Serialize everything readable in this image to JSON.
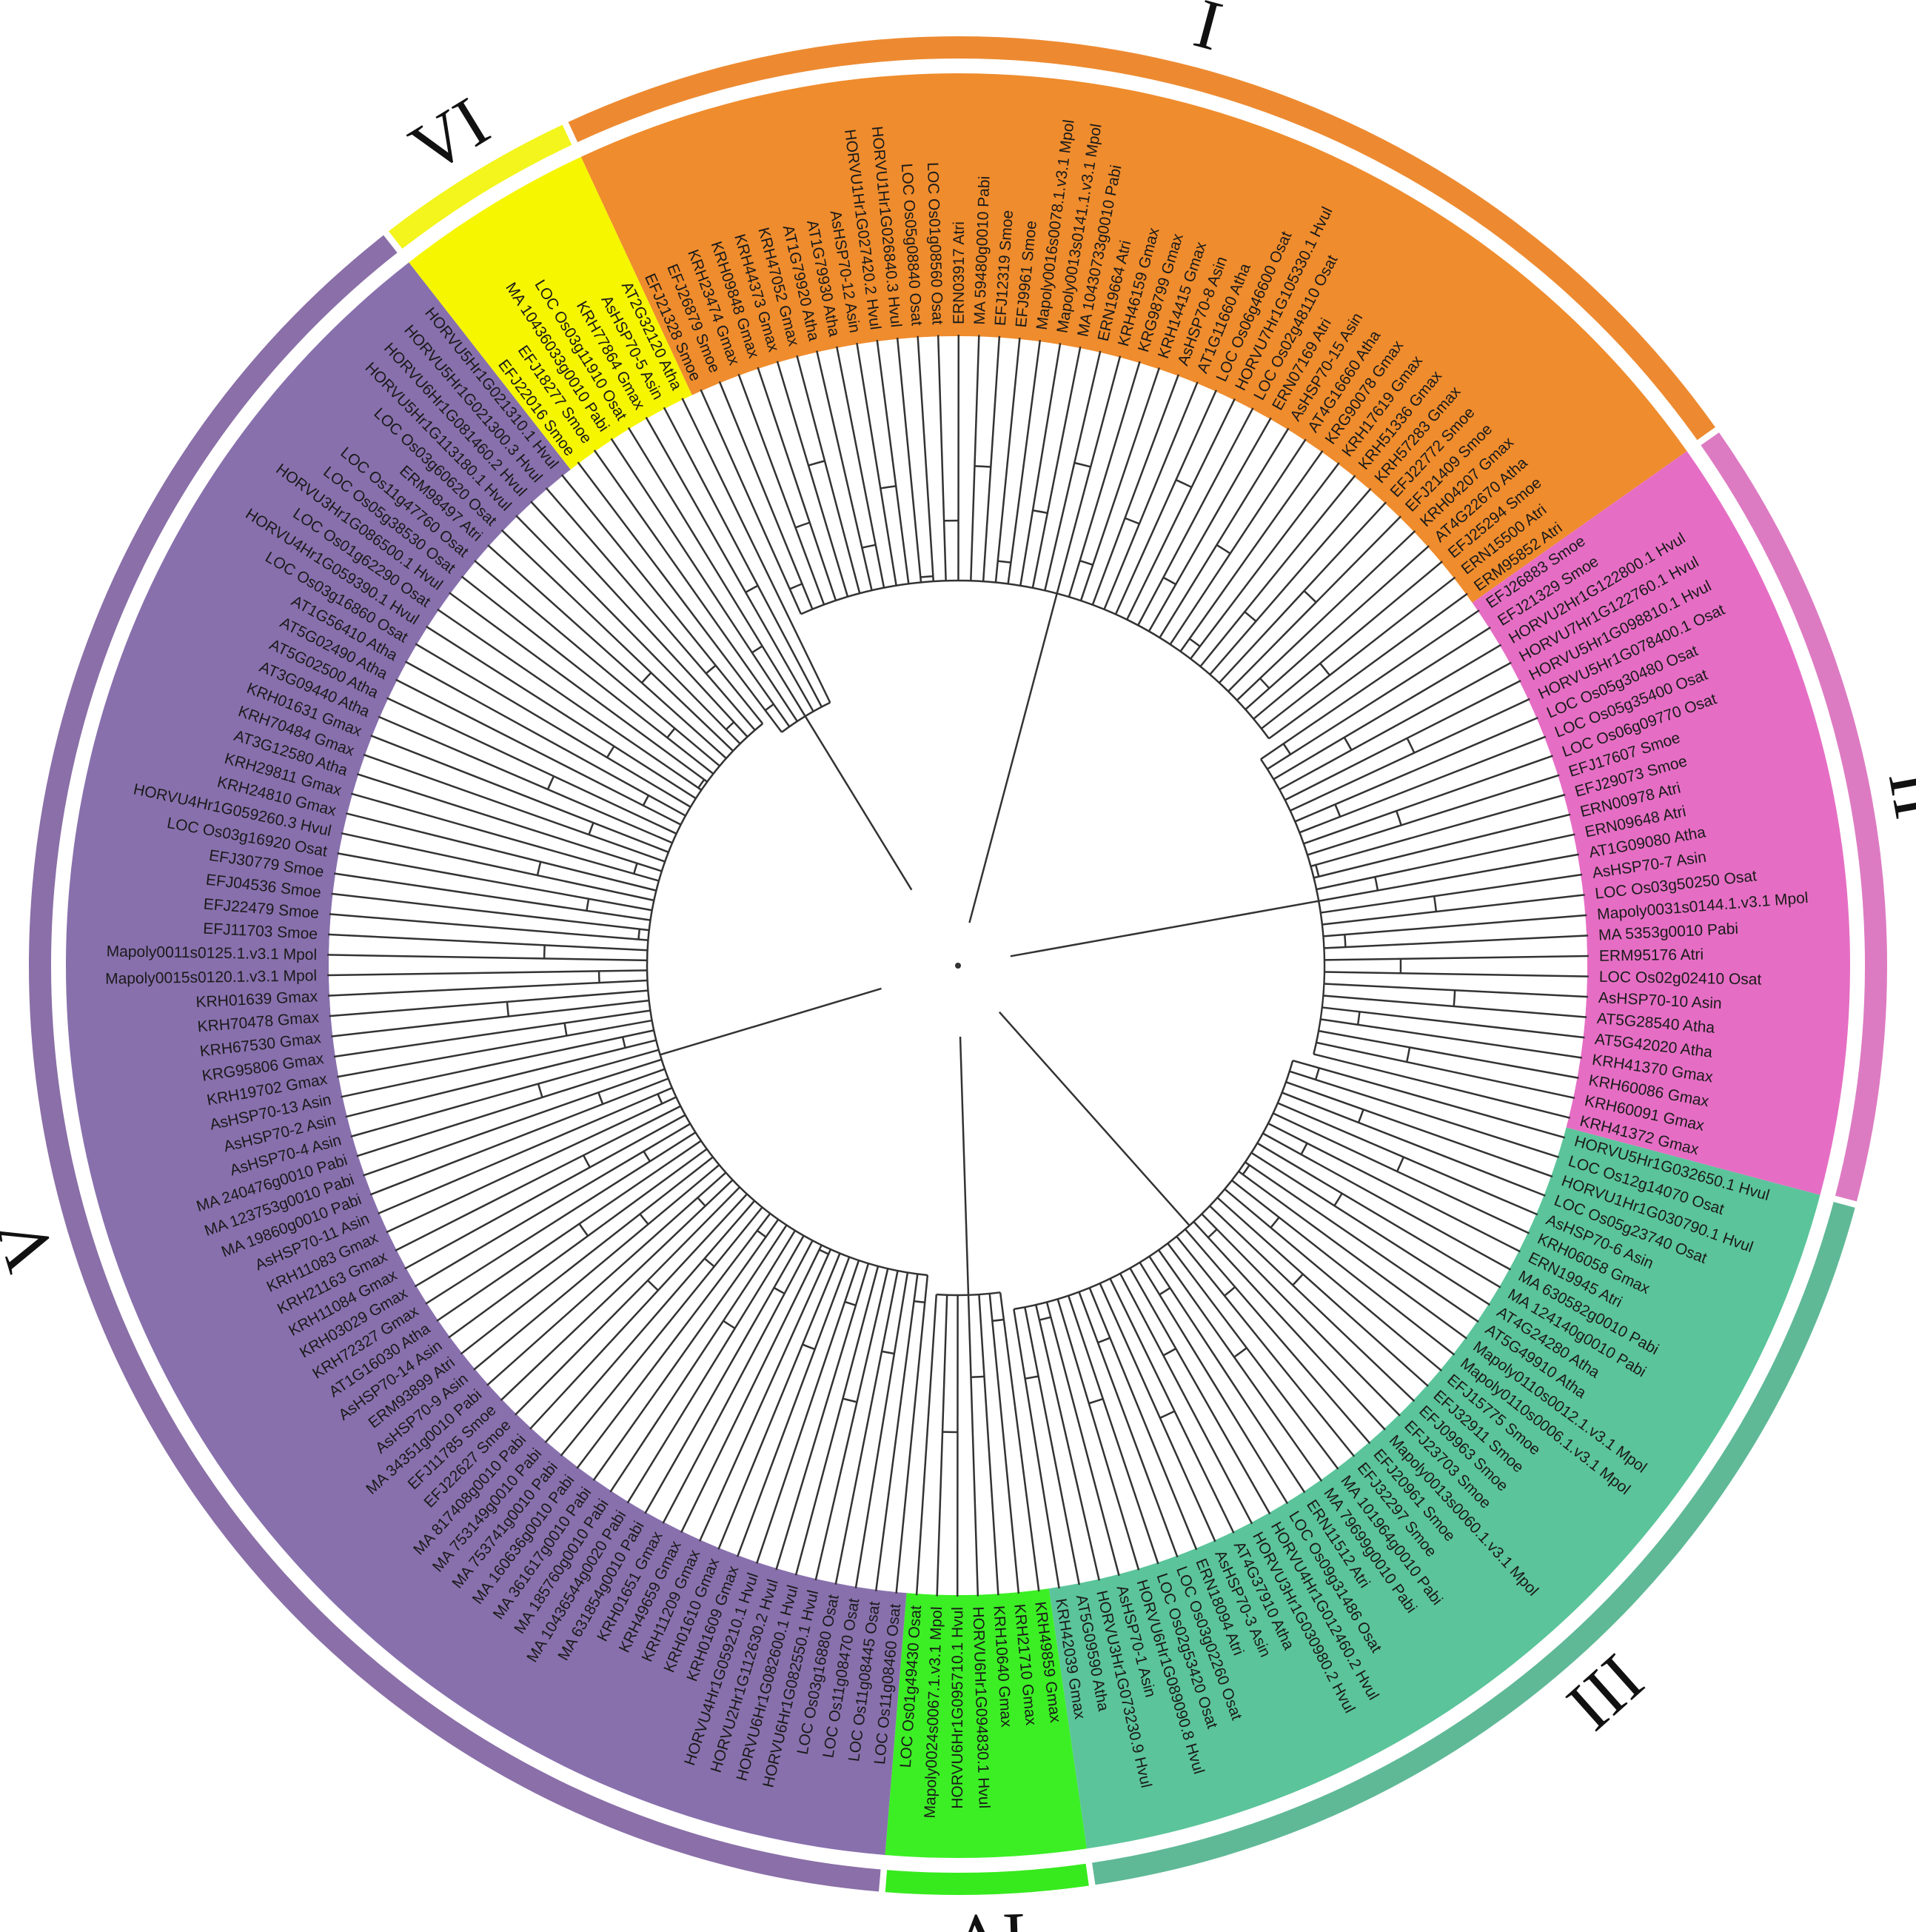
{
  "figure": {
    "type": "circular phylogenetic tree"
  },
  "colors": {
    "I": "#ef8c2d",
    "II": "#e56ec4",
    "III": "#5bc49a",
    "IV": "#3bef24",
    "V": "#8870ad",
    "VI": "#f6f600",
    "outer_ring_I": "#ed8a31",
    "outer_ring_II": "#dd7bc2",
    "outer_ring_III": "#5fb996",
    "outer_ring_IV": "#37ea1e",
    "outer_ring_V": "#8a6fa8",
    "outer_ring_VI": "#f3f51c"
  },
  "clades": [
    {
      "id": "I",
      "label": "I",
      "leaves": [
        "EFJ21328 Smoe",
        "EFJ26879 Smoe",
        "KRH23474 Gmax",
        "KRH09848 Gmax",
        "KRH44373 Gmax",
        "KRH47052 Gmax",
        "AT1G79920 Atha",
        "AT1G79930 Atha",
        "AsHSP70-12 Asin",
        "HORVU1Hr1G027420.2 Hvul",
        "HORVU1Hr1G026840.3 Hvul",
        "LOC Os05g08840 Osat",
        "LOC Os01g08560 Osat",
        "ERN03917 Atri",
        "MA 59480g0010 Pabi",
        "EFJ12319 Smoe",
        "EFJ9961 Smoe",
        "Mapoly0016s0078.1.v3.1 Mpol",
        "Mapoly0013s0141.1.v3.1 Mpol",
        "MA 10430733g0010 Pabi",
        "ERN19664 Atri",
        "KRH46159 Gmax",
        "KRG98799 Gmax",
        "KRH14415 Gmax",
        "AsHSP70-8 Asin",
        "AT1G11660 Atha",
        "LOC Os06g46600 Osat",
        "HORVU7Hr1G105330.1 Hvul",
        "LOC Os02g48110 Osat",
        "ERN07169 Atri",
        "AsHSP70-15 Asin",
        "AT4G16660 Atha",
        "KRG90078 Gmax",
        "KRH17619 Gmax",
        "KRH51336 Gmax",
        "KRH57283 Gmax",
        "EFJ22772 Smoe",
        "EFJ21409 Smoe",
        "KRH04207 Gmax",
        "AT4G22670 Atha",
        "EFJ25294 Smoe",
        "ERN15500 Atri",
        "ERM95852 Atri"
      ]
    },
    {
      "id": "II",
      "label": "II",
      "leaves": [
        "EFJ26883 Smoe",
        "EFJ21329 Smoe",
        "HORVU2Hr1G122800.1 Hvul",
        "HORVU7Hr1G122760.1 Hvul",
        "HORVU5Hr1G098810.1 Hvul",
        "HORVU5Hr1G078400.1 Osat",
        "LOC Os05g30480 Osat",
        "LOC Os05g35400 Osat",
        "LOC Os06g09770 Osat",
        "EFJ17607 Smoe",
        "EFJ29073 Smoe",
        "ERN00978 Atri",
        "ERN09648 Atri",
        "AT1G09080 Atha",
        "AsHSP70-7 Asin",
        "LOC Os03g50250 Osat",
        "Mapoly0031s0144.1.v3.1 Mpol",
        "MA 5353g0010 Pabi",
        "ERM95176 Atri",
        "LOC Os02g02410 Osat",
        "AsHSP70-10 Asin",
        "AT5G28540 Atha",
        "AT5G42020 Atha",
        "KRH41370 Gmax",
        "KRH60086 Gmax",
        "KRH60091 Gmax",
        "KRH41372 Gmax"
      ]
    },
    {
      "id": "III",
      "label": "III",
      "leaves": [
        "HORVU5Hr1G032650.1 Hvul",
        "LOC Os12g14070 Osat",
        "HORVU1Hr1G030790.1 Hvul",
        "LOC Os05g23740 Osat",
        "AsHSP70-6 Asin",
        "KRH06058 Gmax",
        "ERN19945 Atri",
        "MA 630582g0010 Pabi",
        "MA 124140g0010 Pabi",
        "AT4G24280 Atha",
        "AT5G49910 Atha",
        "Mapoly0110s0012.1.v3.1 Mpol",
        "Mapoly0110s0006.1.v3.1 Mpol",
        "EFJ15775 Smoe",
        "EFJ32911 Smoe",
        "EFJ09963 Smoe",
        "EFJ23703 Smoe",
        "Mapoly0013s0060.1.v3.1 Mpol",
        "EFJ20961 Smoe",
        "EFJ32297 Smoe",
        "MA 101964g0010 Pabi",
        "MA 79699g0010 Pabi",
        "ERN11512 Atri",
        "LOC Os09g31486 Osat",
        "HORVU4Hr1G012460.2 Hvul",
        "HORVU3Hr1G030980.2 Hvul",
        "AT4G37910 Atha",
        "AsHSP70-3 Asin",
        "ERN18094 Atri",
        "LOC Os03g02260 Osat",
        "LOC Os02g53420 Osat",
        "HORVU6Hr1G089090.8 Hvul",
        "AsHSP70-1 Asin",
        "HORVU3Hr1G073230.9 Hvul",
        "AT5G09590 Atha",
        "KRH42039 Gmax"
      ]
    },
    {
      "id": "IV",
      "label": "IV",
      "leaves": [
        "KRH49859 Gmax",
        "KRH21710 Gmax",
        "KRH10640 Gmax",
        "HORVU6Hr1G094830.1 Hvul",
        "HORVU6Hr1G095710.1 Hvul",
        "Mapoly0024s0067.1.v3.1 Mpol",
        "LOC Os01g49430 Osat"
      ]
    },
    {
      "id": "V",
      "label": "V",
      "leaves": [
        "LOC Os11g08460 Osat",
        "LOC Os11g08445 Osat",
        "LOC Os11g08470 Osat",
        "LOC Os03g16880 Osat",
        "HORVU6Hr1G082550.1 Hvul",
        "HORVU6Hr1G082600.1 Hvul",
        "HORVU2Hr1G112630.2 Hvul",
        "HORVU4Hr1G059210.1 Hvul",
        "KRH01609 Gmax",
        "KRH01610 Gmax",
        "KRH11209 Gmax",
        "KRH49659 Gmax",
        "KRH01651 Gmax",
        "MA 631854g0010 Pabi",
        "MA 10436544g0020 Pabi",
        "MA 185760g0010 Pabi",
        "MA 361617g0010 Pabi",
        "MA 160636g0010 Pabi",
        "MA 753741g0010 Pabi",
        "MA 753149g0010 Pabi",
        "MA 817408g0010 Pabi",
        "EFJ22627 Smoe",
        "EFJ11785 Smoe",
        "MA 34351g0010 Pabi",
        "AsHSP70-9 Asin",
        "ERM93899 Atri",
        "AsHSP70-14 Asin",
        "AT1G16030 Atha",
        "KRH72327 Gmax",
        "KRH03029 Gmax",
        "KRH11084 Gmax",
        "KRH21163 Gmax",
        "KRH11083 Gmax",
        "AsHSP70-11 Asin",
        "MA 19860g0010 Pabi",
        "MA 123753g0010 Pabi",
        "MA 240476g0010 Pabi",
        "AsHSP70-4 Asin",
        "AsHSP70-2 Asin",
        "AsHSP70-13 Asin",
        "KRH19702 Gmax",
        "KRG95806 Gmax",
        "KRH67530 Gmax",
        "KRH70478 Gmax",
        "KRH01639 Gmax",
        "Mapoly0015s0120.1.v3.1 Mpol",
        "Mapoly0011s0125.1.v3.1 Mpol",
        "EFJ11703 Smoe",
        "EFJ22479 Smoe",
        "EFJ04536 Smoe",
        "EFJ30779 Smoe",
        "LOC Os03g16920 Osat",
        "HORVU4Hr1G059260.3 Hvul",
        "KRH24810 Gmax",
        "KRH29811 Gmax",
        "AT3G12580 Atha",
        "KRH70484 Gmax",
        "KRH01631 Gmax",
        "AT3G09440 Atha",
        "AT5G02500 Atha",
        "AT5G02490 Atha",
        "AT1G56410 Atha",
        "LOC Os03g16860 Osat",
        "HORVU4Hr1G059390.1 Hvul",
        "LOC Os01g62290 Osat",
        "HORVU3Hr1G086500.1 Hvul",
        "LOC Os05g38530 Osat",
        "LOC Os11g47760 Osat",
        "ERM98497 Atri",
        "LOC Os03g60620 Osat",
        "HORVU5Hr1G113180.1 Hvul",
        "HORVU6Hr1G081460.2 Hvul",
        "HORVU5Hr1G021300.3 Hvul",
        "HORVU5Hr1G021310.1 Hvul"
      ]
    },
    {
      "id": "VI",
      "label": "VI",
      "leaves": [
        "EFJ22016 Smoe",
        "EFJ18277 Smoe",
        "MA 10436033g0010 Pabi",
        "LOC Os03g11910 Osat",
        "KRH77864 Gmax",
        "AsHSP70-5 Asin",
        "AT2G32120 Atha"
      ]
    }
  ]
}
